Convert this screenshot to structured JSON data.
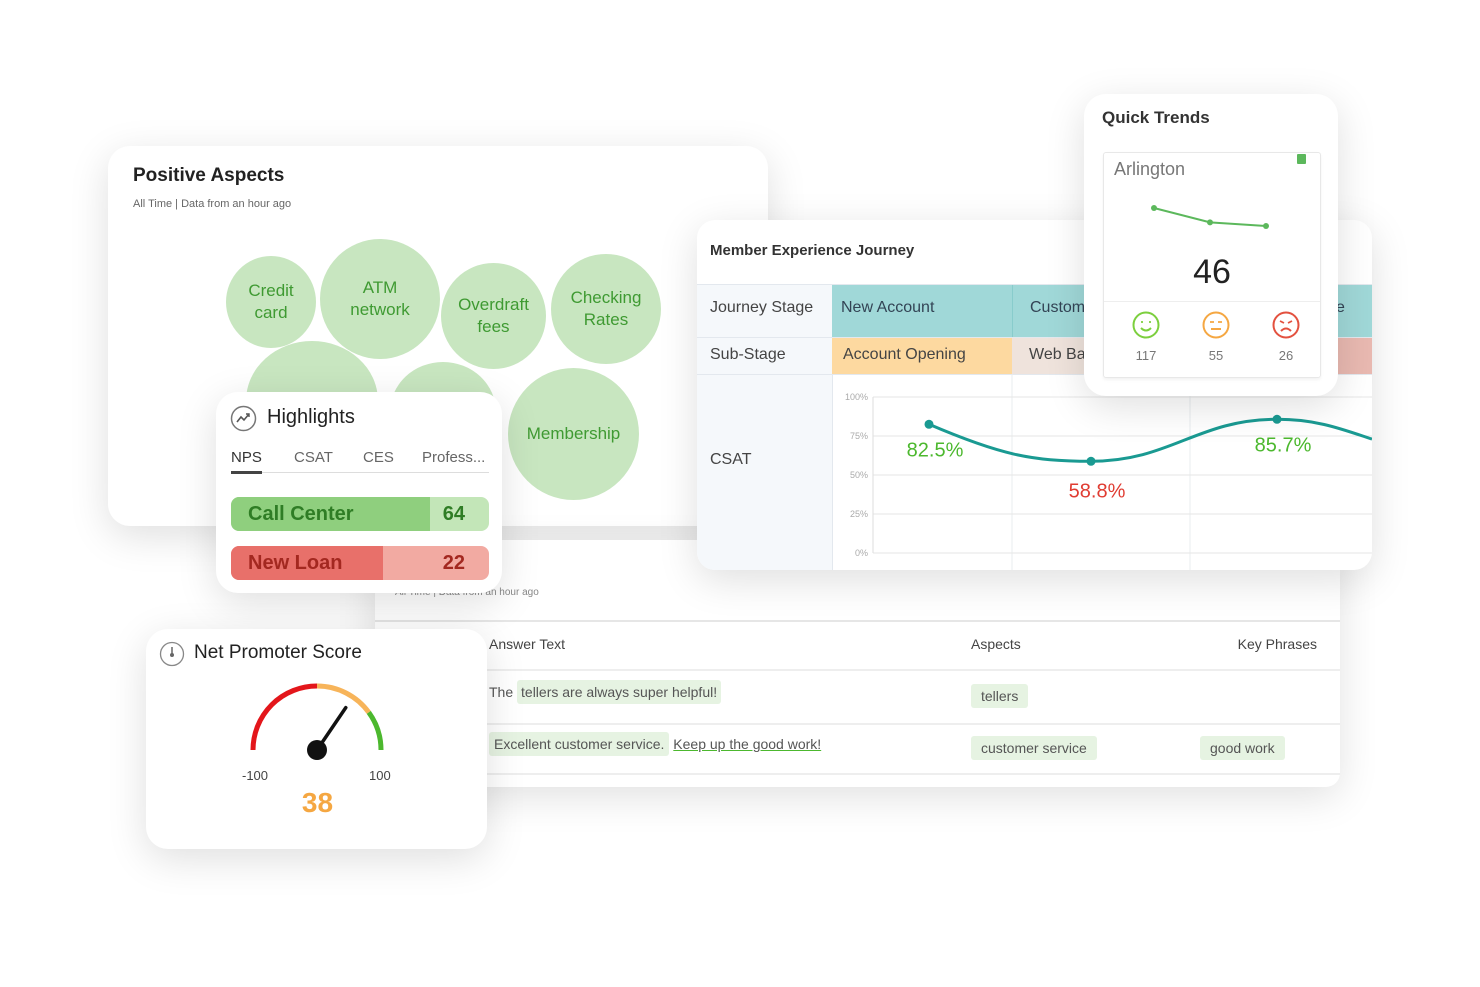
{
  "positive_aspects": {
    "title": "Positive Aspects",
    "subtitle": "All Time | Data from an hour ago",
    "bubbles": [
      "Credit card",
      "ATM network",
      "Overdraft fees",
      "Checking Rates",
      "",
      "",
      "Membership"
    ]
  },
  "responses": {
    "subtitle": "All Time | Data from an hour ago",
    "headers": [
      "Answer Text",
      "Aspects",
      "Key Phrases"
    ],
    "rows": [
      {
        "text_pre": "The ",
        "text_highlight": "tellers are always super helpful!",
        "text_link": "",
        "aspect": "tellers",
        "phrase": ""
      },
      {
        "text_pre": "",
        "text_highlight": "Excellent customer service.",
        "text_link": "Keep up the good work!",
        "aspect": "customer service",
        "phrase": "good work"
      }
    ]
  },
  "journey": {
    "title": "Member Experience Journey",
    "row_labels": [
      "Journey Stage",
      "Sub-Stage",
      "CSAT"
    ],
    "stages": [
      "New Account",
      "Custom",
      "e"
    ],
    "sub_stages": [
      "Account Opening",
      "Web Ba",
      ""
    ],
    "colors": {
      "stage": "#a0d8d8",
      "sub1": "#fdd9a0",
      "sub2": "#efe3dc",
      "sub3": "#e9b9b1",
      "line": "#1a9a92"
    },
    "chart_data": {
      "type": "line",
      "ylim": [
        0,
        100
      ],
      "yticks": [
        "100%",
        "75%",
        "50%",
        "25%",
        "0%"
      ],
      "values": [
        82.5,
        58.8,
        85.7
      ],
      "labels": [
        "82.5%",
        "58.8%",
        "85.7%"
      ],
      "label_colors": [
        "#4cb82e",
        "#e03c32",
        "#4cb82e"
      ]
    }
  },
  "quick_trends": {
    "title": "Quick Trends",
    "location": "Arlington",
    "score": "46",
    "trend": [
      3,
      1,
      0.5
    ],
    "sentiments": [
      {
        "icon": "smile-icon",
        "count": "117",
        "color": "#7ccf3e"
      },
      {
        "icon": "neutral-face-icon",
        "count": "55",
        "color": "#f5a742"
      },
      {
        "icon": "frown-icon",
        "count": "26",
        "color": "#e3513f"
      }
    ]
  },
  "highlights": {
    "title": "Highlights",
    "tabs": [
      "NPS",
      "CSAT",
      "CES",
      "Profess..."
    ],
    "active_tab": 0,
    "items": [
      {
        "label": "Call Center",
        "value": "64",
        "fraction": 0.77,
        "color": "#8fcf7e",
        "bg": "#c3e6b8",
        "text": "#2f7d25"
      },
      {
        "label": "New Loan",
        "value": "22",
        "fraction": 0.59,
        "color": "#e8706a",
        "bg": "#f2aaa2",
        "text": "#a32820"
      }
    ]
  },
  "nps": {
    "title": "Net Promoter Score",
    "min": "-100",
    "max": "100",
    "value": "38",
    "score": 38,
    "value_color": "#f5a742"
  }
}
